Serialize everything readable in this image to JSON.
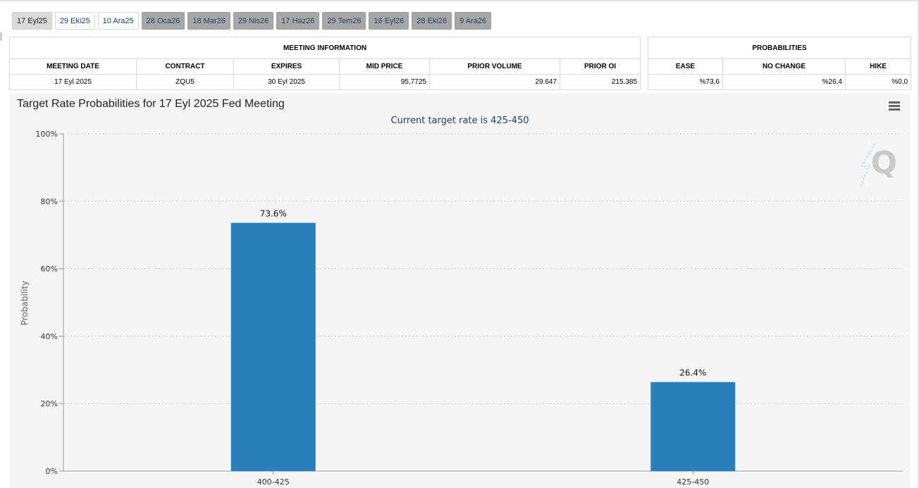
{
  "tabs": [
    {
      "label": "17 Eyl25",
      "state": "active"
    },
    {
      "label": "29 Eki25",
      "state": "light"
    },
    {
      "label": "10 Ara25",
      "state": "light"
    },
    {
      "label": "28 Oca26",
      "state": "dim"
    },
    {
      "label": "18 Mar26",
      "state": "dim"
    },
    {
      "label": "29 Nis26",
      "state": "dim"
    },
    {
      "label": "17 Haz26",
      "state": "dim"
    },
    {
      "label": "29 Tem26",
      "state": "dim"
    },
    {
      "label": "16 Eyl26",
      "state": "dim"
    },
    {
      "label": "28 Eki26",
      "state": "dim"
    },
    {
      "label": "9 Ara26",
      "state": "dim"
    }
  ],
  "meeting_info": {
    "heading": "MEETING INFORMATION",
    "headers": [
      "MEETING DATE",
      "CONTRACT",
      "EXPIRES",
      "MID PRICE",
      "PRIOR VOLUME",
      "PRIOR OI"
    ],
    "row": [
      "17 Eyl 2025",
      "ZQU5",
      "30 Eyl 2025",
      "95,7725",
      "29.647",
      "215.385"
    ]
  },
  "probabilities": {
    "heading": "PROBABILITIES",
    "headers": [
      "EASE",
      "NO CHANGE",
      "HIKE"
    ],
    "row": [
      "%73,6",
      "%26,4",
      "%0,0"
    ]
  },
  "chart": {
    "title": "Target Rate Probabilities for 17 Eyl 2025 Fed Meeting",
    "subtitle": "Current target rate is 425-450",
    "ylabel": "Probability",
    "bar_color": "#2a7fba",
    "menu_icon": "hamburger-menu-icon",
    "logo": "quikstrike-q-logo"
  },
  "chart_data": {
    "type": "bar",
    "categories": [
      "400-425",
      "425-450"
    ],
    "values": [
      73.6,
      26.4
    ],
    "data_labels": [
      "73.6%",
      "26.4%"
    ],
    "title": "Target Rate Probabilities for 17 Eyl 2025 Fed Meeting",
    "subtitle": "Current target rate is 425-450",
    "xlabel": "",
    "ylabel": "Probability",
    "ylim": [
      0,
      100
    ],
    "yticks": [
      "0%",
      "20%",
      "40%",
      "60%",
      "80%",
      "100%"
    ],
    "grid": true
  }
}
